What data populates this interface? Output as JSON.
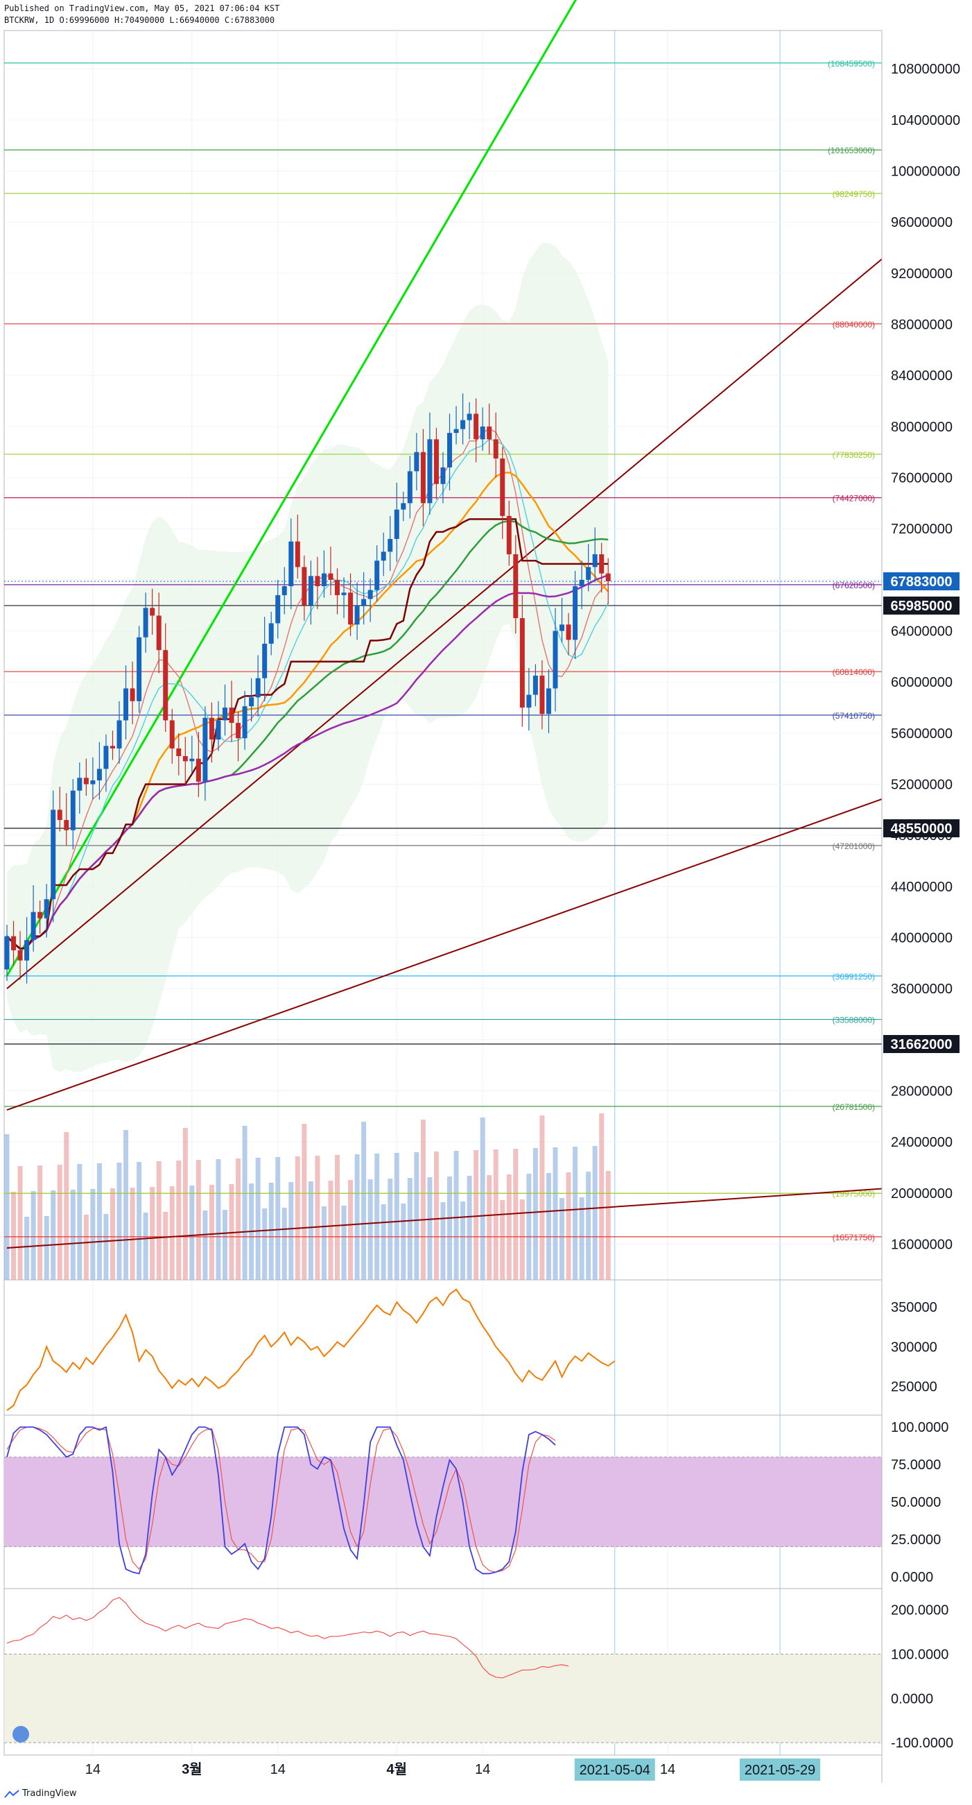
{
  "header": {
    "published": "Published on TradingView.com, May 05, 2021 07:06:04 KST",
    "symbol_line": "BTCKRW, 1D O:69996000 H:70490000 L:66940000 C:67883000"
  },
  "footer": {
    "brand": "TradingView"
  },
  "colors": {
    "up": "#26a69a",
    "candle_up": "#1565c0",
    "candle_down": "#c62828",
    "orange": "#ff9800",
    "green": "#2e9e3a",
    "purple": "#9c27b0",
    "maroon": "#8b0000",
    "bright_green": "#00e600",
    "osc_orange": "#f57c00",
    "stoch_fill": "#e1bee7",
    "cci_fill": "#f1f1e4"
  },
  "chart_data": [
    {
      "type": "candlestick",
      "name": "BTCKRW 1D",
      "ylim": [
        13200000,
        111000000
      ],
      "y_ticks": [
        "108000000",
        "104000000",
        "100000000",
        "96000000",
        "92000000",
        "88000000",
        "84000000",
        "80000000",
        "76000000",
        "72000000",
        "68000000",
        "64000000",
        "60000000",
        "56000000",
        "52000000",
        "48000000",
        "44000000",
        "40000000",
        "36000000",
        "32000000",
        "28000000",
        "24000000",
        "20000000",
        "16000000"
      ],
      "x_ticks": [
        {
          "label": "14",
          "day": 13
        },
        {
          "label": "3월",
          "day": 28
        },
        {
          "label": "14",
          "day": 41
        },
        {
          "label": "4월",
          "day": 59
        },
        {
          "label": "14",
          "day": 72
        },
        {
          "label": "14",
          "day": 100
        }
      ],
      "x_date_labels": [
        {
          "label": "2021-05-04",
          "day": 92
        },
        {
          "label": "2021-05-29",
          "day": 117
        }
      ],
      "last_price": {
        "label": "67883000",
        "value": 67883000
      },
      "price_markers": [
        {
          "label": "65985000",
          "value": 65985000
        },
        {
          "label": "48550000",
          "value": 48550000
        },
        {
          "label": "31662000",
          "value": 31662000
        }
      ],
      "levels": [
        {
          "label": "108459500",
          "value": 108459500,
          "color": "#26c6a0"
        },
        {
          "label": "101653000",
          "value": 101653000,
          "color": "#43a047"
        },
        {
          "label": "98249750",
          "value": 98249750,
          "color": "#9ccc2a"
        },
        {
          "label": "88040000",
          "value": 88040000,
          "color": "#e53935"
        },
        {
          "label": "77830250",
          "value": 77830250,
          "color": "#9ccc2a"
        },
        {
          "label": "74427000",
          "value": 74427000,
          "color": "#c2185b"
        },
        {
          "label": "67620500",
          "value": 67620500,
          "color": "#7b1fa2"
        },
        {
          "label": "60814000",
          "value": 60814000,
          "color": "#e53935"
        },
        {
          "label": "57410750",
          "value": 57410750,
          "color": "#3949ab"
        },
        {
          "label": "47201000",
          "value": 47201000,
          "color": "#757575"
        },
        {
          "label": "36991250",
          "value": 36991250,
          "color": "#29b6f6"
        },
        {
          "label": "33588000",
          "value": 33588000,
          "color": "#26a69a"
        },
        {
          "label": "26781500",
          "value": 26781500,
          "color": "#43a047"
        },
        {
          "label": "19975000",
          "value": 19975000,
          "color": "#9ccc2a"
        },
        {
          "label": "16571750",
          "value": 16571750,
          "color": "#e53935"
        }
      ],
      "closes": [
        40100000,
        39000000,
        38200000,
        39800000,
        42000000,
        41500000,
        43000000,
        50000000,
        49200000,
        48400000,
        51500000,
        52500000,
        52000000,
        52300000,
        53200000,
        55000000,
        54800000,
        57000000,
        59500000,
        58500000,
        63500000,
        65800000,
        65200000,
        62500000,
        57000000,
        54800000,
        54200000,
        53800000,
        54000000,
        52200000,
        57200000,
        55500000,
        57000000,
        58000000,
        56800000,
        55600000,
        58100000,
        58800000,
        60300000,
        63000000,
        64600000,
        66800000,
        67500000,
        71000000,
        69000000,
        66000000,
        68300000,
        67500000,
        68500000,
        68000000,
        66800000,
        67000000,
        64500000,
        66000000,
        66500000,
        67200000,
        69500000,
        70200000,
        71200000,
        73500000,
        74000000,
        76500000,
        78000000,
        74000000,
        79000000,
        75500000,
        76800000,
        79500000,
        79800000,
        80500000,
        81000000,
        79000000,
        80000000,
        79000000,
        77500000,
        73000000,
        70000000,
        65000000,
        58000000,
        59000000,
        60500000,
        57500000,
        59500000,
        64000000,
        64500000,
        63300000,
        67500000,
        68000000,
        69000000,
        70000000,
        68500000,
        67883000
      ],
      "volume_shade": {
        "ylim": [
          0,
          32000000
        ]
      },
      "moving_averages": [
        {
          "window": 7,
          "color": "#e57373"
        },
        {
          "window": 10,
          "color": "#4dd0e1"
        },
        {
          "window": 20,
          "color": "#ff9800"
        },
        {
          "window": 35,
          "color": "#2e9e3a"
        },
        {
          "window": 60,
          "color": "#9c27b0"
        }
      ]
    },
    {
      "type": "line",
      "name": "oscillator",
      "ylim": [
        214000,
        384000
      ],
      "y_ticks": [
        "350000",
        "300000",
        "250000"
      ],
      "values": [
        220000,
        226000,
        245000,
        252000,
        265000,
        275000,
        300000,
        282000,
        276000,
        268000,
        280000,
        272000,
        286000,
        278000,
        290000,
        302000,
        312000,
        324000,
        340000,
        318000,
        282000,
        296000,
        288000,
        270000,
        260000,
        248000,
        258000,
        252000,
        260000,
        250000,
        262000,
        256000,
        248000,
        252000,
        262000,
        270000,
        282000,
        290000,
        305000,
        314000,
        300000,
        308000,
        318000,
        302000,
        312000,
        306000,
        296000,
        300000,
        288000,
        296000,
        306000,
        300000,
        310000,
        320000,
        330000,
        342000,
        352000,
        344000,
        340000,
        356000,
        346000,
        340000,
        330000,
        342000,
        356000,
        362000,
        352000,
        366000,
        372000,
        360000,
        356000,
        340000,
        326000,
        314000,
        300000,
        290000,
        280000,
        266000,
        256000,
        270000,
        262000,
        258000,
        270000,
        282000,
        262000,
        278000,
        288000,
        282000,
        292000,
        286000,
        280000,
        276000,
        282000
      ]
    },
    {
      "type": "line",
      "name": "stochastic",
      "ylim": [
        -8,
        108
      ],
      "y_ticks": [
        "100.0000",
        "75.0000",
        "50.0000",
        "25.0000",
        "0.0000"
      ],
      "band": [
        20,
        80
      ],
      "k": [
        80,
        96,
        100,
        100,
        100,
        98,
        95,
        90,
        85,
        80,
        82,
        95,
        100,
        100,
        98,
        100,
        70,
        22,
        5,
        3,
        2,
        15,
        55,
        85,
        80,
        68,
        75,
        85,
        95,
        100,
        100,
        98,
        68,
        20,
        15,
        18,
        22,
        10,
        5,
        12,
        40,
        82,
        100,
        100,
        100,
        95,
        75,
        72,
        80,
        78,
        55,
        32,
        18,
        12,
        48,
        90,
        100,
        100,
        100,
        88,
        78,
        56,
        35,
        20,
        14,
        40,
        60,
        78,
        72,
        50,
        20,
        5,
        2,
        2,
        3,
        5,
        10,
        30,
        70,
        95,
        97,
        95,
        92,
        88
      ],
      "d": [
        85,
        92,
        98,
        100,
        100,
        99,
        97,
        93,
        88,
        84,
        83,
        90,
        96,
        99,
        99,
        98,
        82,
        55,
        25,
        10,
        5,
        12,
        35,
        65,
        80,
        75,
        74,
        80,
        88,
        95,
        98,
        99,
        85,
        50,
        25,
        18,
        18,
        15,
        10,
        10,
        25,
        55,
        85,
        98,
        99,
        98,
        88,
        78,
        75,
        78,
        70,
        50,
        30,
        20,
        30,
        62,
        88,
        98,
        99,
        94,
        84,
        70,
        52,
        35,
        22,
        30,
        45,
        62,
        72,
        62,
        40,
        20,
        8,
        4,
        3,
        4,
        7,
        18,
        45,
        75,
        90,
        95,
        94,
        91
      ]
    },
    {
      "type": "line",
      "name": "cci",
      "ylim": [
        -128,
        248
      ],
      "y_ticks": [
        "200.0000",
        "100.0000",
        "0.0000",
        "-100.0000"
      ],
      "band": [
        -100,
        100
      ],
      "values": [
        125,
        130,
        132,
        140,
        145,
        160,
        170,
        185,
        180,
        188,
        178,
        182,
        176,
        182,
        195,
        205,
        222,
        228,
        215,
        195,
        180,
        170,
        165,
        160,
        152,
        160,
        165,
        158,
        165,
        170,
        162,
        160,
        158,
        168,
        172,
        175,
        180,
        178,
        170,
        165,
        158,
        160,
        155,
        148,
        152,
        145,
        140,
        142,
        135,
        140,
        140,
        142,
        145,
        147,
        150,
        148,
        152,
        148,
        140,
        148,
        150,
        142,
        148,
        152,
        146,
        145,
        142,
        140,
        135,
        122,
        110,
        95,
        70,
        55,
        48,
        46,
        52,
        58,
        64,
        64,
        66,
        72,
        70,
        74,
        76,
        73
      ]
    }
  ]
}
